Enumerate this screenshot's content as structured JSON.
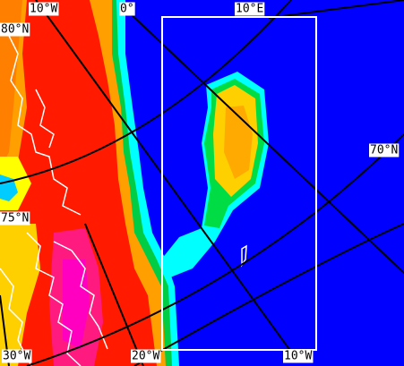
{
  "labels": {
    "top": [
      "10°W",
      "0°",
      "10°E"
    ],
    "left": [
      "80°N",
      "75°N"
    ],
    "right": [
      "70°N"
    ],
    "bottom": [
      "30°W",
      "20°W",
      "10°W"
    ]
  }
}
